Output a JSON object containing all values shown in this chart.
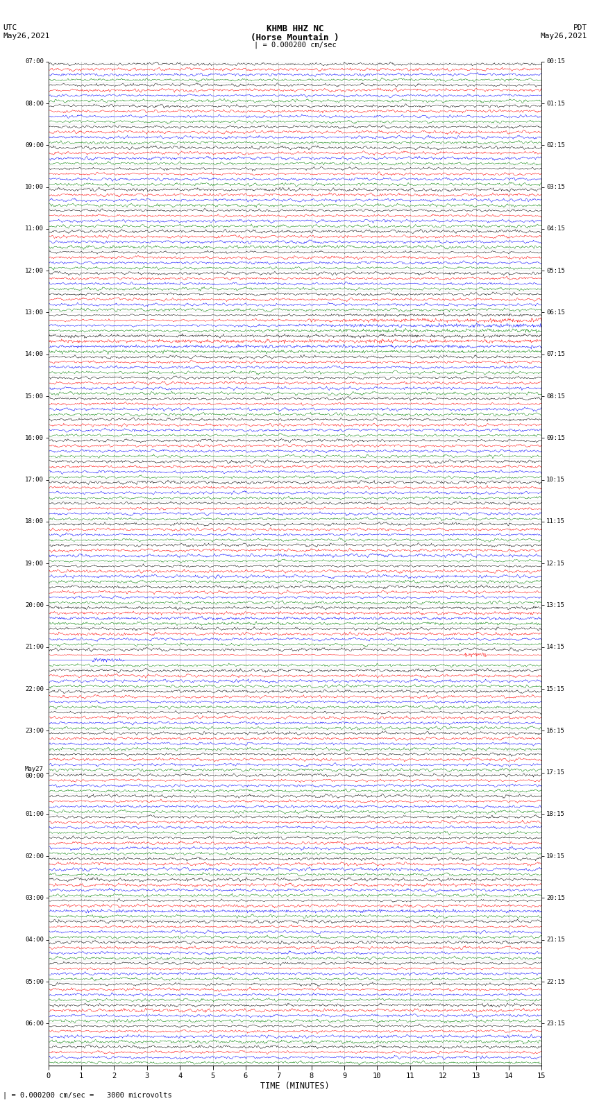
{
  "title_line1": "KHMB HHZ NC",
  "title_line2": "(Horse Mountain )",
  "title_line3": "| = 0.000200 cm/sec",
  "left_label_line1": "UTC",
  "left_label_line2": "May26,2021",
  "right_label_line1": "PDT",
  "right_label_line2": "May26,2021",
  "bottom_label": "| = 0.000200 cm/sec =   3000 microvolts",
  "xlabel": "TIME (MINUTES)",
  "bg_color": "#ffffff",
  "trace_colors": [
    "black",
    "red",
    "blue",
    "green"
  ],
  "n_groups": 48,
  "minutes_per_row": 15,
  "utc_labels": [
    "07:00",
    "08:00",
    "09:00",
    "10:00",
    "11:00",
    "12:00",
    "13:00",
    "14:00",
    "15:00",
    "16:00",
    "17:00",
    "18:00",
    "19:00",
    "20:00",
    "21:00",
    "22:00",
    "23:00",
    "May27\n00:00",
    "01:00",
    "02:00",
    "03:00",
    "04:00",
    "05:00",
    "06:00"
  ],
  "pdt_labels": [
    "00:15",
    "01:15",
    "02:15",
    "03:15",
    "04:15",
    "05:15",
    "06:15",
    "07:15",
    "08:15",
    "09:15",
    "10:15",
    "11:15",
    "12:15",
    "13:15",
    "14:15",
    "15:15",
    "16:15",
    "17:15",
    "18:15",
    "19:15",
    "20:15",
    "21:15",
    "22:15",
    "23:15"
  ],
  "figsize": [
    8.5,
    16.13
  ],
  "dpi": 100,
  "big_event_group": 13,
  "moderate_event_group": 14,
  "spike_group_blue": 54,
  "spike_group_red": 55
}
